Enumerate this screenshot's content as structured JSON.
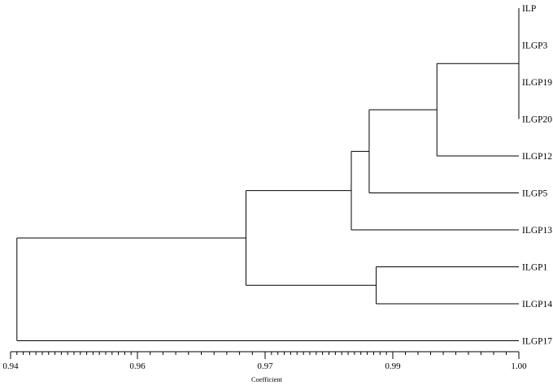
{
  "chart_data": {
    "type": "dendrogram",
    "xlabel": "Coefficient",
    "xlim": [
      0.94,
      1.0
    ],
    "ticks": [
      {
        "value": 0.94,
        "label": "0.94"
      },
      {
        "value": 0.96,
        "label": "0.96"
      },
      {
        "value": 0.97,
        "label": "0.97"
      },
      {
        "value": 0.99,
        "label": "0.99"
      },
      {
        "value": 1.0,
        "label": "1.00"
      }
    ],
    "minor_tick_step": 0.001,
    "leaves": [
      "ILP",
      "ILGP3",
      "ILGP19",
      "ILGP20",
      "ILGP12",
      "ILGP5",
      "ILGP13",
      "ILGP1",
      "ILGP14",
      "ILGP17"
    ],
    "merges": [
      {
        "id": "A",
        "children": [
          "ILP",
          "ILGP3",
          "ILGP19",
          "ILGP20"
        ],
        "coefficient": 1.0
      },
      {
        "id": "B",
        "children": [
          "A",
          "ILGP12"
        ],
        "coefficient": 0.9935
      },
      {
        "id": "C",
        "children": [
          "B",
          "ILGP5"
        ],
        "coefficient": 0.9863
      },
      {
        "id": "D",
        "children": [
          "C",
          "ILGP13"
        ],
        "coefficient": 0.9835
      },
      {
        "id": "E",
        "children": [
          "ILGP1",
          "ILGP14"
        ],
        "coefficient": 0.9874
      },
      {
        "id": "F",
        "children": [
          "D",
          "E"
        ],
        "coefficient": 0.9685
      },
      {
        "id": "G",
        "children": [
          "F",
          "ILGP17"
        ],
        "coefficient": 0.941
      }
    ]
  }
}
